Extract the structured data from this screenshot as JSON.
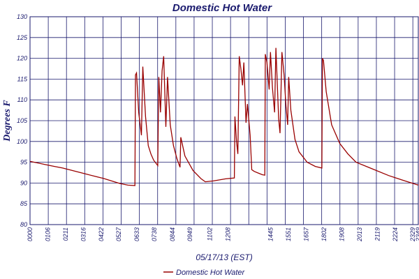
{
  "chart_data": {
    "type": "line",
    "title": "Domestic Hot Water",
    "xlabel": "05/17/13 (EST)",
    "ylabel": "Degrees F",
    "ylim": [
      80,
      130
    ],
    "yticks": [
      "80",
      "85",
      "90",
      "95",
      "100",
      "105",
      "110",
      "115",
      "120",
      "125",
      "130"
    ],
    "xlim": [
      "0000",
      "2349"
    ],
    "xticks": [
      "0000",
      "0106",
      "0211",
      "0316",
      "0422",
      "0527",
      "0633",
      "0738",
      "0844",
      "0949",
      "1102",
      "1208",
      "1445",
      "1551",
      "1657",
      "1802",
      "1908",
      "2013",
      "2119",
      "2224",
      "2329",
      "2349"
    ],
    "grid": true,
    "legend": {
      "position": "bottom-center",
      "entries": [
        "Domestic Hot Water"
      ]
    },
    "series": [
      {
        "name": "Domestic Hot Water",
        "color": "#990000",
        "points": [
          [
            "0000",
            95.2
          ],
          [
            "0030",
            94.8
          ],
          [
            "0100",
            94.4
          ],
          [
            "0130",
            94.0
          ],
          [
            "0200",
            93.6
          ],
          [
            "0230",
            93.1
          ],
          [
            "0300",
            92.6
          ],
          [
            "0330",
            92.1
          ],
          [
            "0400",
            91.6
          ],
          [
            "0430",
            91.1
          ],
          [
            "0500",
            90.5
          ],
          [
            "0530",
            89.9
          ],
          [
            "0600",
            89.5
          ],
          [
            "0626",
            89.4
          ],
          [
            "0628",
            116.0
          ],
          [
            "0632",
            116.5
          ],
          [
            "0640",
            107.0
          ],
          [
            "0650",
            101.5
          ],
          [
            "0655",
            118.0
          ],
          [
            "0705",
            106.0
          ],
          [
            "0715",
            99.0
          ],
          [
            "0725",
            97.0
          ],
          [
            "0735",
            95.5
          ],
          [
            "0750",
            94.2
          ],
          [
            "0754",
            115.5
          ],
          [
            "0800",
            107.0
          ],
          [
            "0806",
            117.0
          ],
          [
            "0812",
            120.5
          ],
          [
            "0820",
            103.5
          ],
          [
            "0826",
            115.5
          ],
          [
            "0836",
            104.0
          ],
          [
            "0848",
            99.0
          ],
          [
            "0900",
            96.0
          ],
          [
            "0912",
            93.8
          ],
          [
            "0915",
            101.0
          ],
          [
            "0930",
            96.5
          ],
          [
            "1000",
            93.0
          ],
          [
            "1030",
            91.0
          ],
          [
            "1045",
            90.3
          ],
          [
            "1115",
            90.5
          ],
          [
            "1200",
            91.0
          ],
          [
            "1232",
            91.2
          ],
          [
            "1234",
            106.0
          ],
          [
            "1240",
            100.0
          ],
          [
            "1245",
            97.0
          ],
          [
            "1250",
            120.5
          ],
          [
            "1256",
            117.5
          ],
          [
            "1302",
            113.5
          ],
          [
            "1307",
            119.0
          ],
          [
            "1315",
            104.5
          ],
          [
            "1320",
            109.0
          ],
          [
            "1330",
            101.5
          ],
          [
            "1336",
            93.2
          ],
          [
            "1345",
            92.8
          ],
          [
            "1400",
            92.4
          ],
          [
            "1415",
            92.0
          ],
          [
            "1424",
            91.9
          ],
          [
            "1426",
            121.0
          ],
          [
            "1432",
            119.0
          ],
          [
            "1440",
            112.5
          ],
          [
            "1445",
            121.5
          ],
          [
            "1452",
            113.0
          ],
          [
            "1500",
            107.0
          ],
          [
            "1505",
            122.5
          ],
          [
            "1515",
            105.5
          ],
          [
            "1520",
            102.0
          ],
          [
            "1527",
            121.5
          ],
          [
            "1535",
            116.0
          ],
          [
            "1542",
            108.5
          ],
          [
            "1548",
            104.0
          ],
          [
            "1552",
            115.5
          ],
          [
            "1600",
            107.5
          ],
          [
            "1615",
            100.5
          ],
          [
            "1630",
            97.5
          ],
          [
            "1700",
            95.0
          ],
          [
            "1730",
            94.0
          ],
          [
            "1754",
            93.6
          ],
          [
            "1756",
            120.0
          ],
          [
            "1800",
            119.5
          ],
          [
            "1810",
            112.0
          ],
          [
            "1830",
            104.0
          ],
          [
            "1900",
            99.5
          ],
          [
            "1930",
            97.0
          ],
          [
            "2000",
            95.0
          ],
          [
            "2100",
            93.4
          ],
          [
            "2200",
            91.8
          ],
          [
            "2300",
            90.5
          ],
          [
            "2349",
            89.5
          ]
        ]
      }
    ]
  }
}
